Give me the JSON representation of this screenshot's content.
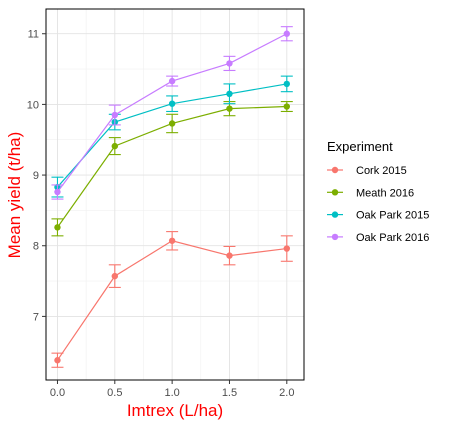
{
  "chart_data": {
    "type": "line",
    "xlabel": "Imtrex (L/ha)",
    "ylabel": "Mean yield (t/ha)",
    "x": [
      0.0,
      0.5,
      1.0,
      1.5,
      2.0
    ],
    "x_tick_labels": [
      "0.0",
      "0.5",
      "1.0",
      "1.5",
      "2.0"
    ],
    "y_ticks": [
      7,
      8,
      9,
      10,
      11
    ],
    "y_tick_labels": [
      "7",
      "8",
      "9",
      "10",
      "11"
    ],
    "xlim": [
      -0.1,
      2.15
    ],
    "ylim": [
      6.1,
      11.35
    ],
    "grid": true,
    "error_bars": true,
    "legend": {
      "title": "Experiment",
      "placement": "right"
    },
    "series": [
      {
        "name": "Cork 2015",
        "color": "#F8766D",
        "values": [
          6.38,
          7.57,
          8.07,
          7.86,
          7.96
        ],
        "err": [
          0.1,
          0.16,
          0.13,
          0.13,
          0.18
        ]
      },
      {
        "name": "Meath 2016",
        "color": "#7CAE00",
        "values": [
          8.26,
          9.41,
          9.73,
          9.94,
          9.97
        ],
        "err": [
          0.12,
          0.12,
          0.13,
          0.1,
          0.07
        ]
      },
      {
        "name": "Oak Park 2015",
        "color": "#00BFC4",
        "values": [
          8.83,
          9.75,
          10.01,
          10.15,
          10.29
        ],
        "err": [
          0.14,
          0.11,
          0.11,
          0.14,
          0.11
        ]
      },
      {
        "name": "Oak Park 2016",
        "color": "#C77CFF",
        "values": [
          8.76,
          9.85,
          10.33,
          10.58,
          11.0
        ],
        "err": [
          0.1,
          0.14,
          0.07,
          0.1,
          0.1
        ]
      }
    ]
  }
}
